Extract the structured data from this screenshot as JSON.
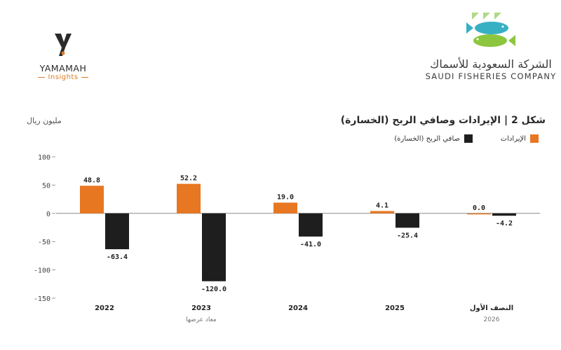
{
  "logos": {
    "left_brand": "YAMAMAH",
    "left_sub": "Insights",
    "right_arabic": "الشركة السعودية للأسماك",
    "right_english": "SAUDI FISHERIES COMPANY"
  },
  "header": {
    "title": "شكل 2 | الإيرادات وصافي الربح (الخسارة)",
    "unit": "مليون ريال"
  },
  "colors": {
    "revenue": "#e87722",
    "net": "#1e1e1e"
  },
  "chart_data": {
    "type": "bar",
    "categories": [
      "2022",
      "2023",
      "2024",
      "2025",
      "النصف الأول"
    ],
    "category_notes": [
      "",
      "معاد عرضها",
      "",
      "",
      "2026"
    ],
    "series": [
      {
        "name": "الإيرادات",
        "values": [
          48.8,
          52.2,
          19.0,
          4.1,
          0.0
        ],
        "labels": [
          "48.8",
          "52.2",
          "19.0",
          "4.1",
          "0.0"
        ]
      },
      {
        "name": "صافي الربح (الخسارة)",
        "values": [
          -63.4,
          -120.0,
          -41.0,
          -25.4,
          -4.2
        ],
        "labels": [
          "-63.4",
          "-120.0",
          "-41.0",
          "-25.4",
          "-4.2"
        ]
      }
    ],
    "ylim": [
      -150,
      100
    ],
    "yticks": [
      100,
      50,
      0,
      -50,
      -100,
      -150
    ],
    "legend_position": "top-right",
    "grid": false
  }
}
